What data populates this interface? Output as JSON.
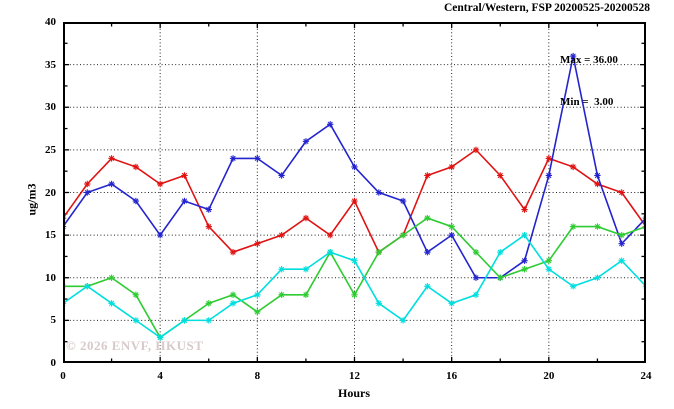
{
  "title": "Central/Western, FSP 20200525-20200528",
  "annotation": {
    "max_label": "Max = 36.00",
    "min_label": "Min =  3.00"
  },
  "watermark": "© 2026 ENVF, HKUST",
  "chart_data": {
    "type": "line",
    "title": "Central/Western, FSP 20200525-20200528",
    "xlabel": "Hours",
    "ylabel": "ug/m3",
    "xlim": [
      0,
      24
    ],
    "ylim": [
      0,
      40
    ],
    "x_ticks": [
      0,
      4,
      8,
      12,
      16,
      20,
      24
    ],
    "y_ticks": [
      0,
      5,
      10,
      15,
      20,
      25,
      30,
      35,
      40
    ],
    "x_minor_step": 2,
    "y_minor_step": 2.5,
    "grid": "dotted",
    "legend": "none",
    "stat_max": 36.0,
    "stat_min": 3.0,
    "x": [
      0,
      1,
      2,
      3,
      4,
      5,
      6,
      7,
      8,
      9,
      10,
      11,
      12,
      13,
      14,
      15,
      16,
      17,
      18,
      19,
      20,
      21,
      22,
      23,
      24
    ],
    "series": [
      {
        "name": "red",
        "color": "#e01212",
        "values": [
          17,
          21,
          24,
          23,
          21,
          22,
          16,
          13,
          14,
          15,
          17,
          15,
          19,
          13,
          15,
          22,
          23,
          25,
          22,
          18,
          24,
          23,
          21,
          20,
          16
        ]
      },
      {
        "name": "blue",
        "color": "#2424cf",
        "values": [
          16,
          20,
          21,
          19,
          15,
          19,
          18,
          24,
          24,
          22,
          26,
          28,
          23,
          20,
          19,
          13,
          15,
          10,
          10,
          12,
          22,
          36,
          22,
          14,
          17
        ]
      },
      {
        "name": "green",
        "color": "#2ecc32",
        "values": [
          9,
          9,
          10,
          8,
          3,
          5,
          7,
          8,
          6,
          8,
          8,
          13,
          8,
          13,
          15,
          17,
          16,
          13,
          10,
          11,
          12,
          16,
          16,
          15,
          16
        ]
      },
      {
        "name": "cyan",
        "color": "#00dede",
        "values": [
          7,
          9,
          7,
          5,
          3,
          5,
          5,
          7,
          8,
          11,
          11,
          13,
          12,
          7,
          5,
          9,
          7,
          8,
          13,
          15,
          11,
          9,
          10,
          12,
          9
        ]
      }
    ]
  }
}
